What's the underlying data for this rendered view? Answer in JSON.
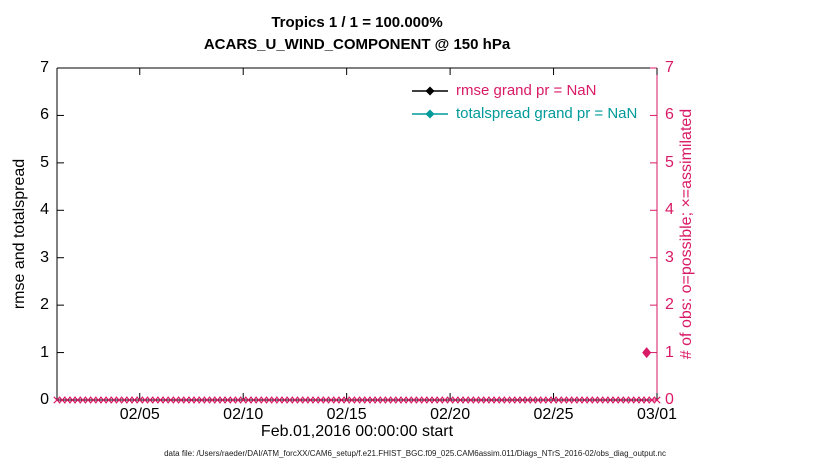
{
  "titles": {
    "line1": "Tropics 1 / 1 = 100.000%",
    "line2": "ACARS_U_WIND_COMPONENT @ 150 hPa"
  },
  "left_axis": {
    "label": "rmse and totalspread",
    "color": "#000000",
    "ticks": [
      0,
      1,
      2,
      3,
      4,
      5,
      6,
      7
    ]
  },
  "right_axis": {
    "label": "# of obs: o=possible; ×=assimilated",
    "color": "#d91a66",
    "ticks": [
      0,
      1,
      2,
      3,
      4,
      5,
      6,
      7
    ]
  },
  "x_axis": {
    "label": "Feb.01,2016 00:00:00 start",
    "range_days": [
      0,
      29
    ],
    "ticks": [
      {
        "day": 4,
        "label": "02/05"
      },
      {
        "day": 9,
        "label": "02/10"
      },
      {
        "day": 14,
        "label": "02/15"
      },
      {
        "day": 19,
        "label": "02/20"
      },
      {
        "day": 24,
        "label": "02/25"
      },
      {
        "day": 29,
        "label": "03/01"
      }
    ]
  },
  "legend": {
    "items": [
      {
        "label": "rmse grand pr = NaN",
        "line_color": "#000000",
        "text_color": "#d91a66",
        "marker": "diamond"
      },
      {
        "label": "totalspread grand pr = NaN",
        "line_color": "#009a9a",
        "text_color": "#009a9a",
        "marker": "diamond"
      }
    ]
  },
  "footer": "data file: /Users/raeder/DAI/ATM_forcXX/CAM6_setup/f.e21.FHIST_BGC.f09_025.CAM6assim.011/Diags_NTrS_2016-02/obs_diag_output.nc",
  "chart_data": {
    "type": "line",
    "title": "Tropics 1 / 1 = 100.000%",
    "subtitle": "ACARS_U_WIND_COMPONENT @ 150 hPa",
    "xlabel": "Feb.01,2016 00:00:00 start",
    "ylabel_left": "rmse and totalspread",
    "ylabel_right": "# of obs: o=possible; ×=assimilated",
    "ylim_left": [
      0,
      7
    ],
    "ylim_right": [
      0,
      7
    ],
    "grid": false,
    "legend_position": "upper center-right inside plot",
    "x_tick_labels": [
      "02/05",
      "02/10",
      "02/15",
      "02/20",
      "02/25",
      "03/01"
    ],
    "x_tick_days": [
      4,
      9,
      14,
      19,
      24,
      29
    ],
    "series": [
      {
        "name": "rmse grand pr = NaN",
        "color": "#000000",
        "marker": "diamond",
        "values": "all NaN - no line drawn"
      },
      {
        "name": "totalspread grand pr = NaN",
        "color": "#009a9a",
        "marker": "diamond",
        "values": "all NaN - no line drawn"
      },
      {
        "name": "assimilated obs count",
        "axis": "right",
        "color": "#d91a66",
        "marker": "x",
        "y_value": 0,
        "x_start_day": 0,
        "x_end_day": 29,
        "x_interval_days": 0.25
      },
      {
        "name": "possible obs count",
        "axis": "right",
        "color": "#d91a66",
        "marker": "diamond",
        "points": [
          {
            "day": 28.5,
            "value": 1
          }
        ]
      }
    ]
  }
}
